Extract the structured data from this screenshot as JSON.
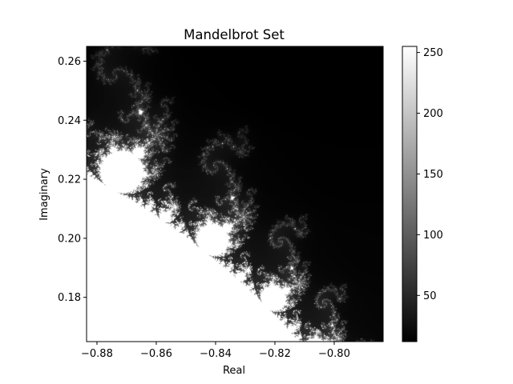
{
  "chart_data": {
    "type": "heatmap",
    "title": "Mandelbrot Set",
    "xlabel": "Real",
    "ylabel": "Imaginary",
    "xlim": [
      -0.8835,
      -0.7835
    ],
    "ylim": [
      0.165,
      0.265
    ],
    "x_ticks": [
      -0.88,
      -0.86,
      -0.84,
      -0.82,
      -0.8
    ],
    "x_tick_labels": [
      "−0.88",
      "−0.86",
      "−0.84",
      "−0.82",
      "−0.80"
    ],
    "y_ticks": [
      0.18,
      0.2,
      0.22,
      0.24,
      0.26
    ],
    "y_tick_labels": [
      "0.18",
      "0.20",
      "0.22",
      "0.24",
      "0.26"
    ],
    "colormap": "gray",
    "max_iterations": 256,
    "colorbar": {
      "range": [
        12,
        255
      ],
      "ticks": [
        50,
        100,
        150,
        200,
        250
      ],
      "tick_labels": [
        "50",
        "100",
        "150",
        "200",
        "250"
      ]
    },
    "grid": false
  }
}
